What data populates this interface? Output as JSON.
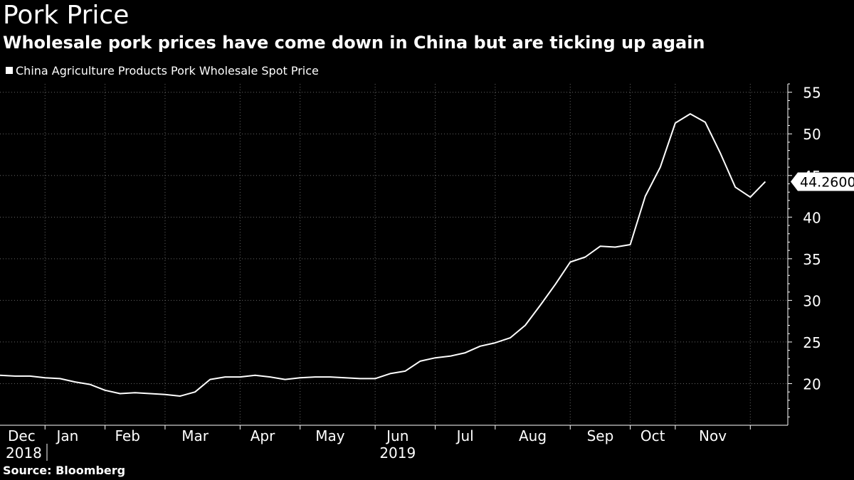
{
  "colors": {
    "background": "#000000",
    "line": "#ffffff",
    "grid": "#666666",
    "axis": "#ffffff"
  },
  "header": {
    "title": "Pork Price",
    "subtitle": "Wholesale pork prices have come down in China but are ticking up again"
  },
  "legend": {
    "label": "China Agriculture Products Pork Wholesale Spot Price"
  },
  "footer": {
    "source": "Source: Bloomberg"
  },
  "chart_data": {
    "type": "line",
    "title": "Pork Price",
    "subtitle": "Wholesale pork prices have come down in China but are ticking up again",
    "xlabel": "",
    "ylabel": "",
    "ylim": [
      15,
      56
    ],
    "y_ticks": [
      20,
      25,
      30,
      35,
      40,
      45,
      50,
      55
    ],
    "y_axis_side": "right",
    "grid": true,
    "legend_position": "top-left",
    "x_ticks": [
      {
        "label": "Dec",
        "year": "2018",
        "x": 0
      },
      {
        "label": "Jan",
        "x": 4.5
      },
      {
        "label": "Feb",
        "x": 8.5
      },
      {
        "label": "Mar",
        "x": 13
      },
      {
        "label": "Apr",
        "x": 17.5
      },
      {
        "label": "May",
        "x": 22
      },
      {
        "label": "Jun",
        "year": "2019",
        "x": 26.5
      },
      {
        "label": "Jul",
        "x": 31
      },
      {
        "label": "Aug",
        "x": 35.5
      },
      {
        "label": "Sep",
        "x": 40
      },
      {
        "label": "Oct",
        "x": 43.5
      },
      {
        "label": "Nov",
        "x": 47.5
      }
    ],
    "month_boundaries": [
      3,
      7,
      11,
      16,
      20,
      25,
      29,
      33,
      38,
      42,
      45,
      50
    ],
    "xlim": [
      0,
      52.5
    ],
    "series": [
      {
        "name": "China Agriculture Products Pork Wholesale Spot Price",
        "x": [
          0,
          1,
          2,
          3,
          4,
          5,
          6,
          7,
          8,
          9,
          10,
          11,
          12,
          13,
          14,
          15,
          16,
          17,
          18,
          19,
          20,
          21,
          22,
          23,
          24,
          25,
          26,
          27,
          28,
          29,
          30,
          31,
          32,
          33,
          34,
          35,
          36,
          37,
          38,
          39,
          40,
          41,
          42,
          43,
          44,
          45,
          46,
          47,
          48,
          49,
          50,
          51
        ],
        "values": [
          21.0,
          20.9,
          20.9,
          20.7,
          20.6,
          20.2,
          19.9,
          19.2,
          18.8,
          18.9,
          18.8,
          18.7,
          18.5,
          19.0,
          20.5,
          20.8,
          20.8,
          21.0,
          20.8,
          20.5,
          20.7,
          20.8,
          20.8,
          20.7,
          20.6,
          20.6,
          21.2,
          21.5,
          22.7,
          23.1,
          23.3,
          23.7,
          24.5,
          24.9,
          25.5,
          27.0,
          29.4,
          31.9,
          34.6,
          35.2,
          36.5,
          36.4,
          36.7,
          42.5,
          46.0,
          51.3,
          52.4,
          51.4,
          47.7,
          43.6,
          42.4,
          44.26
        ],
        "last_value_label": "44.2600"
      }
    ]
  }
}
